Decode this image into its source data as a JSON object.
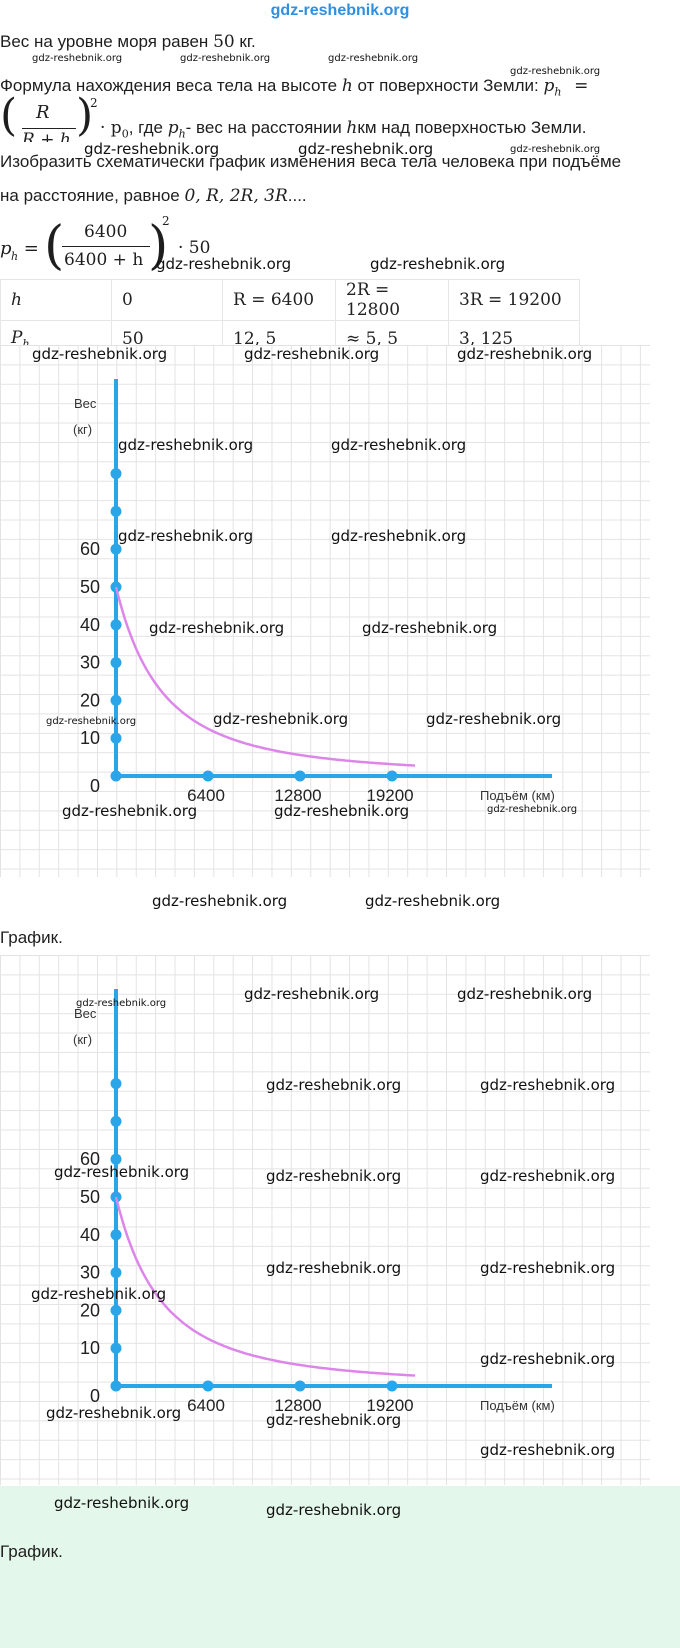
{
  "site_title": "gdz-reshebnik.org",
  "text": {
    "line1_pre": "Вес на уровне моря равен ",
    "line1_num": "50",
    "line1_post": " кг.",
    "line2_pre": "Формула нахождения веса тела на высоте ",
    "line2_var": "h",
    "line2_mid": " от поверхности Земли: ",
    "line2_ph": "p",
    "line2_ph_sub": "h",
    "line2_eq": "=",
    "line3_R": "R",
    "line3_den": "R + h",
    "line3_exp": "2",
    "line3_dot": "· p",
    "line3_dot_sub": "0",
    "line3_post1": ", где ",
    "line3_ph": "p",
    "line3_ph_sub": "h",
    "line3_post2": "- вес на расстоянии ",
    "line3_h": "h",
    "line3_post3": "км над поверхностью Земли.",
    "line4": "Изобразить схематически график изменения веса тела человека при подъёме",
    "line5_pre": "на расстояние, равное ",
    "line5_vals": "0, R, 2R, 3R",
    "line5_post": "....",
    "formula_lhs": "p",
    "formula_lhs_sub": "h",
    "formula_eq": " = ",
    "formula_num": "6400",
    "formula_den": "6400 + h",
    "formula_exp": "2",
    "formula_tail": "· 50",
    "caption1": "График.",
    "caption2": "График."
  },
  "table": {
    "row_h": [
      "h",
      "0",
      "R = 6400",
      "2R = 12800",
      "3R = 19200"
    ],
    "row_p_label": "P",
    "row_p_sub": "h",
    "row_p": [
      "50",
      "12, 5",
      "≈ 5, 5",
      "3, 125"
    ]
  },
  "watermarks": {
    "text": "gdz-reshebnik.org"
  },
  "chart_data": [
    {
      "type": "line",
      "ylabel_line1": "Вес",
      "ylabel_line2": "(кг)",
      "xlabel": "Подъём (км)",
      "origin_label": "0",
      "x_ticks": [
        "6400",
        "12800",
        "19200"
      ],
      "y_ticks": [
        "10",
        "20",
        "30",
        "40",
        "50",
        "60"
      ],
      "x": [
        0,
        6400,
        12800,
        19200
      ],
      "y": [
        50,
        12.5,
        5.5,
        3.125
      ],
      "colors": {
        "axis": "#2aa6e8",
        "curve": "#dd86ea"
      }
    },
    {
      "type": "line",
      "ylabel_line1": "Вес",
      "ylabel_line2": "(кг)",
      "xlabel": "Подъём (км)",
      "origin_label": "0",
      "x_ticks": [
        "6400",
        "12800",
        "19200"
      ],
      "y_ticks": [
        "10",
        "20",
        "30",
        "40",
        "50",
        "60"
      ],
      "x": [
        0,
        6400,
        12800,
        19200
      ],
      "y": [
        50,
        12.5,
        5.5,
        3.125
      ],
      "colors": {
        "axis": "#2aa6e8",
        "curve": "#dd86ea"
      }
    }
  ]
}
